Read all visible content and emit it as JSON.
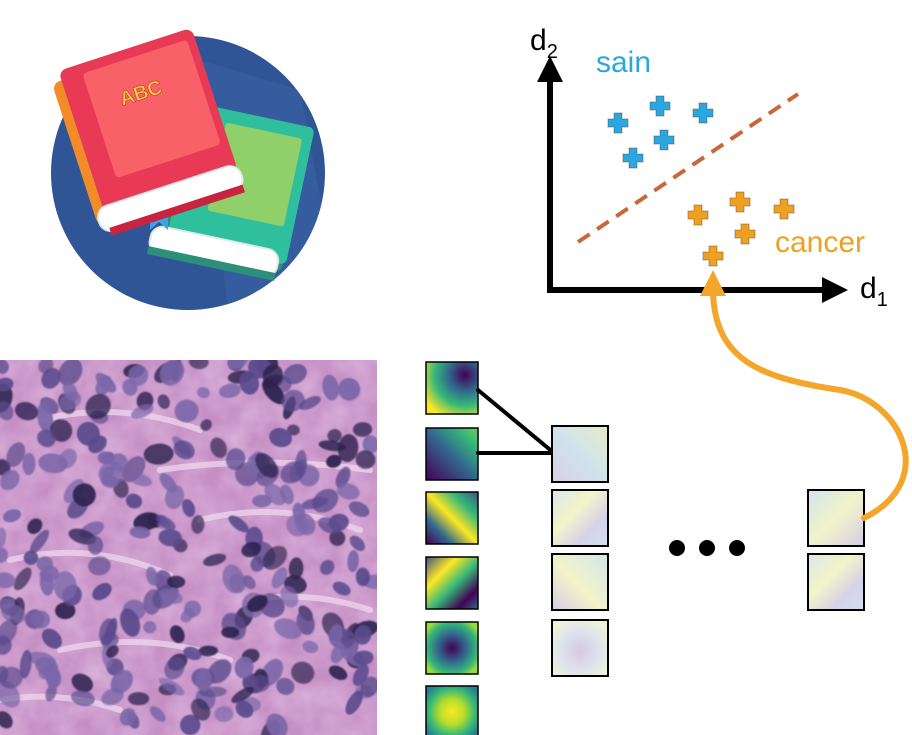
{
  "scatter": {
    "x_axis_label": "d",
    "x_axis_subscript": "1",
    "y_axis_label": "d",
    "y_axis_subscript": "2",
    "class_healthy": "sain",
    "class_cancer": "cancer",
    "colors": {
      "healthy": "#2aa6e0",
      "cancer": "#f0a020",
      "boundary": "#c8683a",
      "axis": "#000000",
      "arrow": "#f4a62a"
    }
  },
  "book_icon": {
    "cover_text": "ABC",
    "colors": {
      "circle": "#2f5596",
      "book_red": "#e83a55",
      "book_green": "#2fbf9d",
      "text": "#f6d43a"
    }
  },
  "pipeline": {
    "ellipsis": "• • •"
  },
  "filter_colormap": "viridis"
}
